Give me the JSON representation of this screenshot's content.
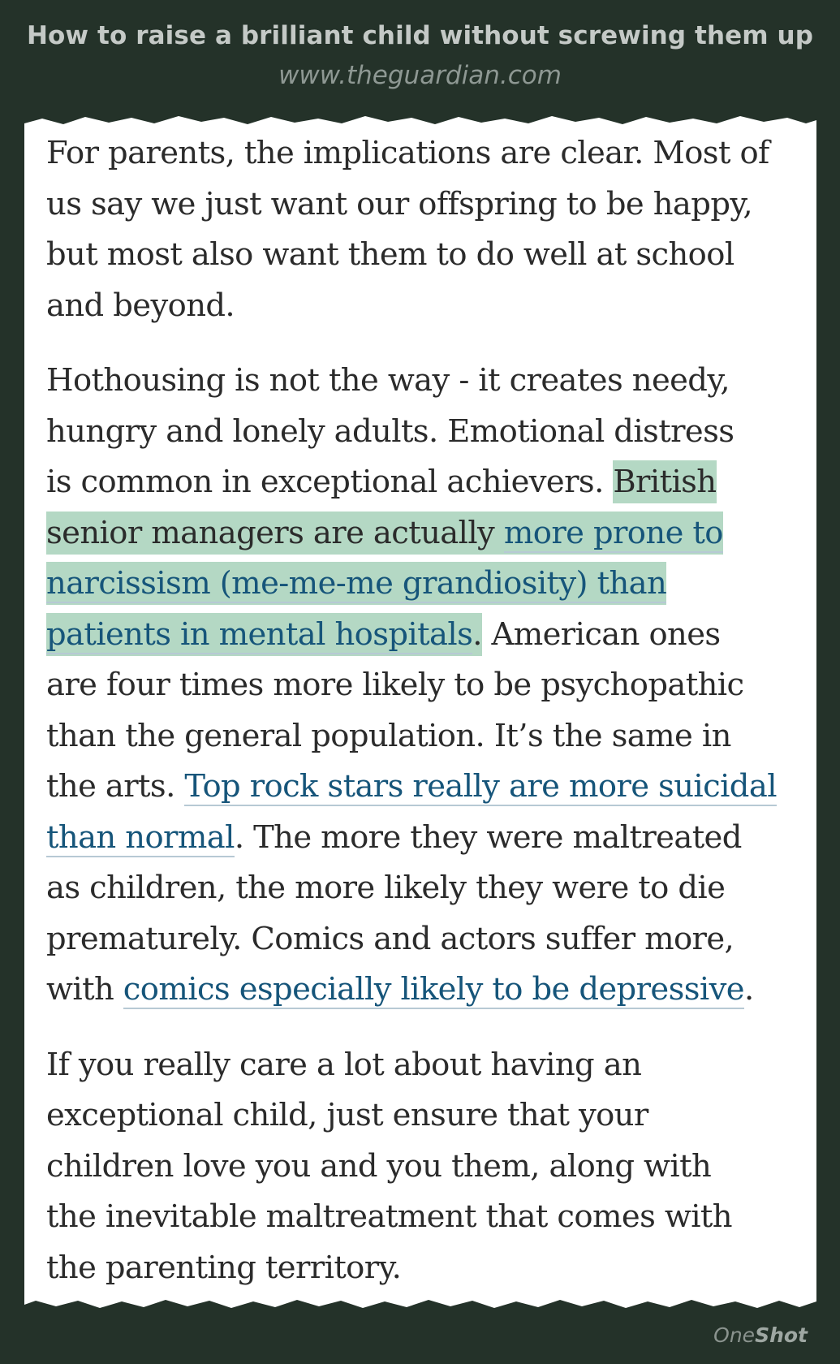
{
  "header": {
    "title": "How to raise a brilliant child without screwing them up",
    "source": "www.theguardian.com"
  },
  "article": {
    "paragraph_1": {
      "line_1": "For parents, the implications are clear. Most of",
      "line_2": "us say we just want our offspring to be happy,",
      "line_3": "but most also want them to do well at school",
      "line_4": "and beyond."
    },
    "paragraph_2": {
      "line_1": "Hothousing is not the way - it creates needy,",
      "line_2": "hungry and lonely adults. Emotional distress",
      "line_3_text": "is common in exceptional achievers. ",
      "line_3_highlight": "British",
      "line_4_highlight_text": "senior managers are actually ",
      "link_narcissism_1": "more prone to",
      "link_narcissism_2": "narcissism (me-me-me grandiosity) than",
      "link_narcissism_3": "patients in mental hospitals",
      "line_6_highlight_end": ".",
      "line_6_text": " American ones",
      "line_7": "are four times more likely to be psychopathic",
      "line_8": "than the general population. It’s the same in",
      "line_9_text": "the arts. ",
      "link_rockstars_1": "Top rock stars really are more suicidal",
      "link_rockstars_2": "than normal",
      "line_10_text": ". The more they were maltreated",
      "line_11": "as children, the more likely they were to die",
      "line_12": "prematurely. Comics and actors suffer more,",
      "line_13_text": "with ",
      "link_comics": "comics especially likely to be depressive",
      "line_13_end": "."
    },
    "paragraph_3": {
      "line_1": "If you really care a lot about having an",
      "line_2": "exceptional child, just ensure that your",
      "line_3": "children love you and you them, along with",
      "line_4": "the inevitable maltreatment that comes with",
      "line_5": "the parenting territory."
    }
  },
  "footer": {
    "brand_one": "One",
    "brand_shot": "Shot"
  },
  "colors": {
    "background": "#243229",
    "paper": "#ffffff",
    "text": "#2b2b2b",
    "link": "#16557a",
    "highlight": "#b4d8c4"
  }
}
